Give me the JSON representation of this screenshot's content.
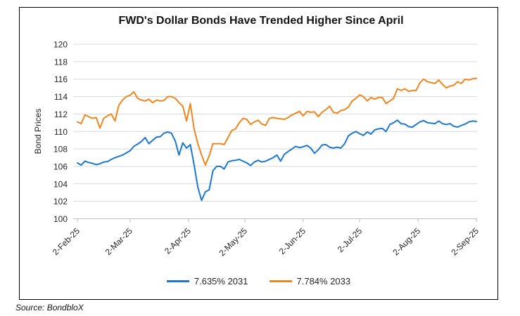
{
  "title": "FWD's Dollar Bonds Have Trended Higher Since April",
  "source_note": "Source: BondbloX",
  "colors": {
    "series_blue": "#1a78d2",
    "series_orange": "#f1861d",
    "gridline": "#d9d9d9",
    "axis_line": "#bfbfbf",
    "text": "#262626"
  },
  "chart_data": {
    "type": "line",
    "title": "FWD's Dollar Bonds Have Trended Higher Since April",
    "xlabel": "",
    "ylabel": "Bond Prices",
    "ylim": [
      100,
      120
    ],
    "y_tick_step": 2,
    "grid": "horizontal",
    "legend_position": "bottom",
    "x_unit": "days since 2-Feb-2025, sampled every 2 days",
    "x_step_days": 2,
    "x_max_day": 212,
    "x_ticks": [
      {
        "day": 0,
        "label": "2-Feb-25"
      },
      {
        "day": 28,
        "label": "2-Mar-25"
      },
      {
        "day": 59,
        "label": "2-Apr-25"
      },
      {
        "day": 89,
        "label": "2-May-25"
      },
      {
        "day": 120,
        "label": "2-Jun-25"
      },
      {
        "day": 150,
        "label": "2-Jul-25"
      },
      {
        "day": 181,
        "label": "2-Aug-25"
      },
      {
        "day": 212,
        "label": "2-Sep-25"
      }
    ],
    "series": [
      {
        "name": "7.635% 2031",
        "color": "#1a78d2",
        "values": [
          106.4,
          106.15,
          106.6,
          106.45,
          106.35,
          106.2,
          106.3,
          106.5,
          106.55,
          106.8,
          107.0,
          107.15,
          107.3,
          107.55,
          107.8,
          108.3,
          108.55,
          108.85,
          109.3,
          108.6,
          109.0,
          109.35,
          109.4,
          109.8,
          109.95,
          109.8,
          108.9,
          107.3,
          108.7,
          108.1,
          108.5,
          106.2,
          103.6,
          102.1,
          103.1,
          103.3,
          105.5,
          106.0,
          106.0,
          105.7,
          106.5,
          106.65,
          106.7,
          106.8,
          106.6,
          106.4,
          106.1,
          106.5,
          106.7,
          106.5,
          106.6,
          106.8,
          107.0,
          107.3,
          106.6,
          107.4,
          107.7,
          108.0,
          108.3,
          108.15,
          108.25,
          108.4,
          108.1,
          107.5,
          107.9,
          108.45,
          108.5,
          108.2,
          108.1,
          108.2,
          108.1,
          108.6,
          109.5,
          109.8,
          110.0,
          109.75,
          109.55,
          109.95,
          109.7,
          110.2,
          110.3,
          110.35,
          110.0,
          110.8,
          111.0,
          111.3,
          110.9,
          110.85,
          110.55,
          110.5,
          110.8,
          111.1,
          111.25,
          111.0,
          110.95,
          110.9,
          111.2,
          110.9,
          110.8,
          110.9,
          110.6,
          110.5,
          110.7,
          110.85,
          111.1,
          111.2,
          111.15
        ]
      },
      {
        "name": "7.784% 2033",
        "color": "#f1861d",
        "values": [
          111.1,
          110.9,
          111.9,
          111.7,
          111.5,
          111.6,
          110.4,
          111.5,
          111.8,
          112.0,
          111.2,
          113.0,
          113.6,
          114.0,
          114.15,
          114.55,
          113.8,
          113.6,
          113.5,
          113.7,
          113.3,
          113.6,
          113.5,
          113.55,
          114.0,
          114.0,
          113.8,
          113.3,
          112.9,
          111.2,
          113.2,
          110.3,
          108.6,
          107.3,
          106.15,
          107.2,
          108.6,
          108.6,
          108.6,
          108.5,
          109.3,
          110.1,
          110.3,
          111.0,
          111.5,
          111.4,
          110.8,
          111.1,
          111.3,
          110.85,
          110.7,
          111.5,
          111.6,
          111.5,
          111.45,
          111.4,
          111.6,
          111.9,
          112.1,
          112.3,
          111.8,
          112.3,
          112.2,
          112.25,
          111.7,
          112.2,
          112.5,
          112.9,
          112.2,
          112.1,
          112.4,
          112.5,
          112.8,
          113.5,
          113.8,
          114.2,
          114.0,
          113.5,
          113.9,
          113.7,
          113.9,
          113.9,
          113.2,
          113.5,
          113.8,
          114.9,
          114.7,
          114.9,
          114.6,
          114.7,
          114.7,
          115.6,
          116.0,
          115.7,
          115.6,
          115.5,
          115.9,
          115.4,
          115.0,
          115.2,
          115.3,
          115.7,
          115.5,
          116.0,
          115.9,
          116.05,
          116.1
        ]
      }
    ]
  }
}
